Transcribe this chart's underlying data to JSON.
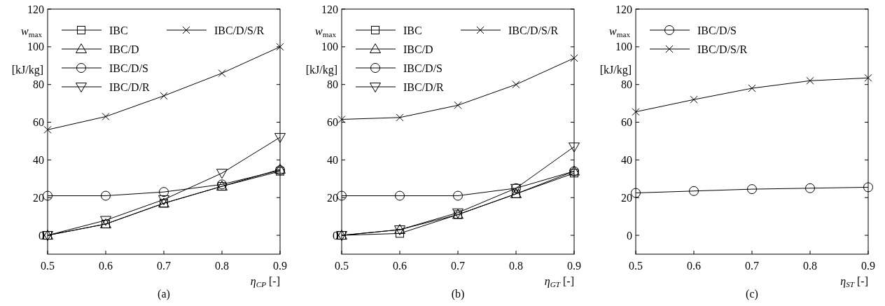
{
  "chart_data": [
    {
      "type": "line",
      "ylabel": "w$_{max}$ [kJ/kg]",
      "xlabel": "η$_{CP}$ [-]",
      "annotations": [
        "(a)"
      ],
      "x": [
        0.5,
        0.6,
        0.7,
        0.8,
        0.9
      ],
      "xlim": [
        0.5,
        0.9
      ],
      "xticks": [
        0.5,
        0.6,
        0.7,
        0.8,
        0.9
      ],
      "ylim": [
        -10,
        120
      ],
      "yticks": [
        0,
        20,
        40,
        60,
        80,
        100,
        120
      ],
      "grid": false,
      "legend": "top",
      "series": [
        {
          "name": "IBC",
          "color": "#000000",
          "marker": "square",
          "values": [
            0,
            6,
            17,
            26,
            34
          ]
        },
        {
          "name": "IBC/D",
          "color": "#000000",
          "marker": "triangle",
          "values": [
            0,
            6,
            17,
            26,
            35
          ]
        },
        {
          "name": "IBC/D/S",
          "color": "#000000",
          "marker": "circle",
          "values": [
            21,
            21,
            23,
            27,
            34.5
          ]
        },
        {
          "name": "IBC/D/R",
          "color": "#000000",
          "marker": "triangle-down",
          "values": [
            0,
            8,
            19,
            33,
            52
          ]
        },
        {
          "name": "IBC/D/S/R",
          "color": "#000000",
          "marker": "cross",
          "values": [
            56,
            63,
            74,
            86,
            100
          ]
        }
      ]
    },
    {
      "type": "line",
      "ylabel": "w$_{max}$ [kJ/kg]",
      "xlabel": "η$_{GT}$ [-]",
      "annotations": [
        "(b)"
      ],
      "x": [
        0.5,
        0.6,
        0.7,
        0.8,
        0.9
      ],
      "xlim": [
        0.5,
        0.9
      ],
      "xticks": [
        0.5,
        0.6,
        0.7,
        0.8,
        0.9
      ],
      "ylim": [
        -10,
        120
      ],
      "yticks": [
        0,
        20,
        40,
        60,
        80,
        100,
        120
      ],
      "grid": false,
      "legend": "top",
      "series": [
        {
          "name": "IBC",
          "color": "#000000",
          "marker": "square",
          "values": [
            0,
            1,
            11,
            22,
            33
          ]
        },
        {
          "name": "IBC/D",
          "color": "#000000",
          "marker": "triangle",
          "values": [
            0,
            3,
            11,
            22,
            34
          ]
        },
        {
          "name": "IBC/D/S",
          "color": "#000000",
          "marker": "circle",
          "values": [
            21,
            21,
            21,
            25,
            34
          ]
        },
        {
          "name": "IBC/D/R",
          "color": "#000000",
          "marker": "triangle-down",
          "values": [
            0,
            3,
            12,
            25,
            47
          ]
        },
        {
          "name": "IBC/D/S/R",
          "color": "#000000",
          "marker": "cross",
          "values": [
            61.5,
            62.5,
            69,
            80,
            94
          ]
        }
      ]
    },
    {
      "type": "line",
      "ylabel": "w$_{max}$ [kJ/kg]",
      "xlabel": "η$_{ST}$ [-]",
      "annotations": [
        "(c)"
      ],
      "x": [
        0.5,
        0.6,
        0.7,
        0.8,
        0.9
      ],
      "xlim": [
        0.5,
        0.9
      ],
      "xticks": [
        0.5,
        0.6,
        0.7,
        0.8,
        0.9
      ],
      "ylim": [
        -10,
        120
      ],
      "yticks": [
        0,
        20,
        40,
        60,
        80,
        100,
        120
      ],
      "grid": false,
      "legend": "top left",
      "series": [
        {
          "name": "IBC/D/S",
          "color": "#000000",
          "marker": "circle",
          "values": [
            22.5,
            23.5,
            24.5,
            25,
            25.5
          ]
        },
        {
          "name": "IBC/D/S/R",
          "color": "#000000",
          "marker": "cross",
          "values": [
            65.5,
            72,
            78,
            82,
            83.5
          ]
        }
      ]
    }
  ]
}
